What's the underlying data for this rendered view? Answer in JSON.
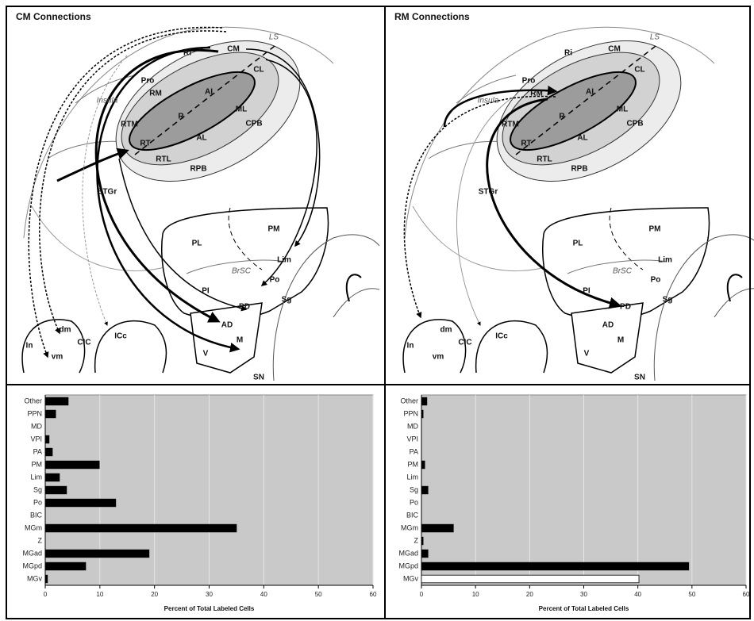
{
  "diagrams": [
    {
      "title": "CM Connections",
      "labels": [
        "Ri",
        "CM",
        "LS",
        "CL",
        "Pro",
        "RM",
        "AI",
        "Insula",
        "RTM",
        "R",
        "ML",
        "CPB",
        "RT",
        "AL",
        "RTL",
        "RPB",
        "STGr",
        "PL",
        "PM",
        "Lim",
        "BrSC",
        "Po",
        "PI",
        "Sg",
        "PD",
        "AD",
        "M",
        "V",
        "SN",
        "ICc",
        "CIC",
        "dm",
        "vm",
        "In"
      ]
    },
    {
      "title": "RM Connections",
      "labels": [
        "Ri",
        "CM",
        "LS",
        "CL",
        "Pro",
        "RM",
        "AI",
        "Insula",
        "RTM",
        "R",
        "ML",
        "CPB",
        "RT",
        "AL",
        "RTL",
        "RPB",
        "STGr",
        "PL",
        "PM",
        "Lim",
        "BrSC",
        "Po",
        "PI",
        "Sg",
        "PD",
        "AD",
        "M",
        "V",
        "SN",
        "ICc",
        "CIC",
        "dm",
        "vm",
        "In"
      ]
    }
  ],
  "chart_data": [
    {
      "type": "bar",
      "orientation": "horizontal",
      "categories": [
        "Other",
        "PPN",
        "MD",
        "VPI",
        "PA",
        "PM",
        "Lim",
        "Sg",
        "Po",
        "BIC",
        "MGm",
        "Z",
        "MGad",
        "MGpd",
        "MGv"
      ],
      "values": [
        4.2,
        1.9,
        0,
        0.7,
        1.3,
        9.9,
        2.6,
        3.9,
        12.9,
        0,
        35,
        0,
        19,
        7.4,
        0.4
      ],
      "colors": [
        "#000000",
        "#000000",
        "#000000",
        "#000000",
        "#000000",
        "#000000",
        "#000000",
        "#000000",
        "#000000",
        "#000000",
        "#000000",
        "#000000",
        "#000000",
        "#000000",
        "#000000"
      ],
      "xlim": [
        0,
        60
      ],
      "xticks": [
        0,
        10,
        20,
        30,
        40,
        50,
        60
      ],
      "xlabel": "Percent of Total Labeled Cells",
      "grid": true
    },
    {
      "type": "bar",
      "orientation": "horizontal",
      "categories": [
        "Other",
        "PPN",
        "MD",
        "VPI",
        "PA",
        "PM",
        "Lim",
        "Sg",
        "Po",
        "BIC",
        "MGm",
        "Z",
        "MGad",
        "MGpd",
        "MGv"
      ],
      "values": [
        1.0,
        0.3,
        0,
        0,
        0,
        0.6,
        0,
        1.2,
        0,
        0,
        5.9,
        0.3,
        1.2,
        49.4,
        40.2
      ],
      "colors": [
        "#000000",
        "#000000",
        "#000000",
        "#000000",
        "#000000",
        "#000000",
        "#000000",
        "#000000",
        "#000000",
        "#000000",
        "#000000",
        "#000000",
        "#000000",
        "#000000",
        "#ffffff"
      ],
      "xlim": [
        0,
        60
      ],
      "xticks": [
        0,
        10,
        20,
        30,
        40,
        50,
        60
      ],
      "xlabel": "Percent of Total Labeled Cells",
      "grid": true
    }
  ]
}
